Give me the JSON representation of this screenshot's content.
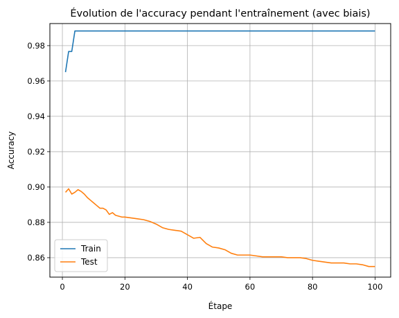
{
  "chart_data": {
    "type": "line",
    "title": "Évolution de l'accuracy pendant l'entraînement (avec biais)",
    "xlabel": "Étape",
    "ylabel": "Accuracy",
    "xlim": [
      -4,
      105
    ],
    "ylim": [
      0.849,
      0.9925
    ],
    "xticks": [
      0,
      20,
      40,
      60,
      80,
      100
    ],
    "xtick_labels": [
      "0",
      "20",
      "40",
      "60",
      "80",
      "100"
    ],
    "yticks": [
      0.86,
      0.88,
      0.9,
      0.92,
      0.94,
      0.96,
      0.98
    ],
    "ytick_labels": [
      "0.86",
      "0.88",
      "0.90",
      "0.92",
      "0.94",
      "0.96",
      "0.98"
    ],
    "grid": true,
    "legend_position": "lower-left",
    "series": [
      {
        "name": "Train",
        "color": "#1f77b4",
        "x": [
          1,
          2,
          3,
          4,
          5,
          10,
          20,
          30,
          40,
          50,
          60,
          70,
          80,
          90,
          100
        ],
        "y": [
          0.965,
          0.9767,
          0.9767,
          0.9883,
          0.9883,
          0.9883,
          0.9883,
          0.9883,
          0.9883,
          0.9883,
          0.9883,
          0.9883,
          0.9883,
          0.9883,
          0.9883
        ]
      },
      {
        "name": "Test",
        "color": "#ff7f0e",
        "x": [
          1,
          2,
          3,
          4,
          5,
          6,
          7,
          8,
          9,
          10,
          11,
          12,
          13,
          14,
          15,
          16,
          17,
          18,
          19,
          20,
          22,
          24,
          26,
          28,
          30,
          32,
          34,
          36,
          38,
          40,
          42,
          44,
          46,
          48,
          50,
          52,
          54,
          56,
          58,
          60,
          62,
          64,
          66,
          68,
          70,
          72,
          74,
          76,
          78,
          80,
          82,
          84,
          86,
          88,
          90,
          92,
          94,
          96,
          98,
          100
        ],
        "y": [
          0.897,
          0.899,
          0.896,
          0.897,
          0.8985,
          0.8975,
          0.896,
          0.894,
          0.8925,
          0.891,
          0.8895,
          0.888,
          0.888,
          0.887,
          0.8845,
          0.8855,
          0.884,
          0.8835,
          0.883,
          0.883,
          0.8825,
          0.882,
          0.8815,
          0.8805,
          0.879,
          0.877,
          0.876,
          0.8755,
          0.875,
          0.873,
          0.871,
          0.8715,
          0.868,
          0.866,
          0.8655,
          0.8645,
          0.8625,
          0.8615,
          0.8615,
          0.8615,
          0.861,
          0.8605,
          0.8605,
          0.8605,
          0.8605,
          0.86,
          0.86,
          0.86,
          0.8595,
          0.8585,
          0.858,
          0.8575,
          0.857,
          0.857,
          0.857,
          0.8565,
          0.8565,
          0.856,
          0.855,
          0.855
        ]
      }
    ]
  }
}
